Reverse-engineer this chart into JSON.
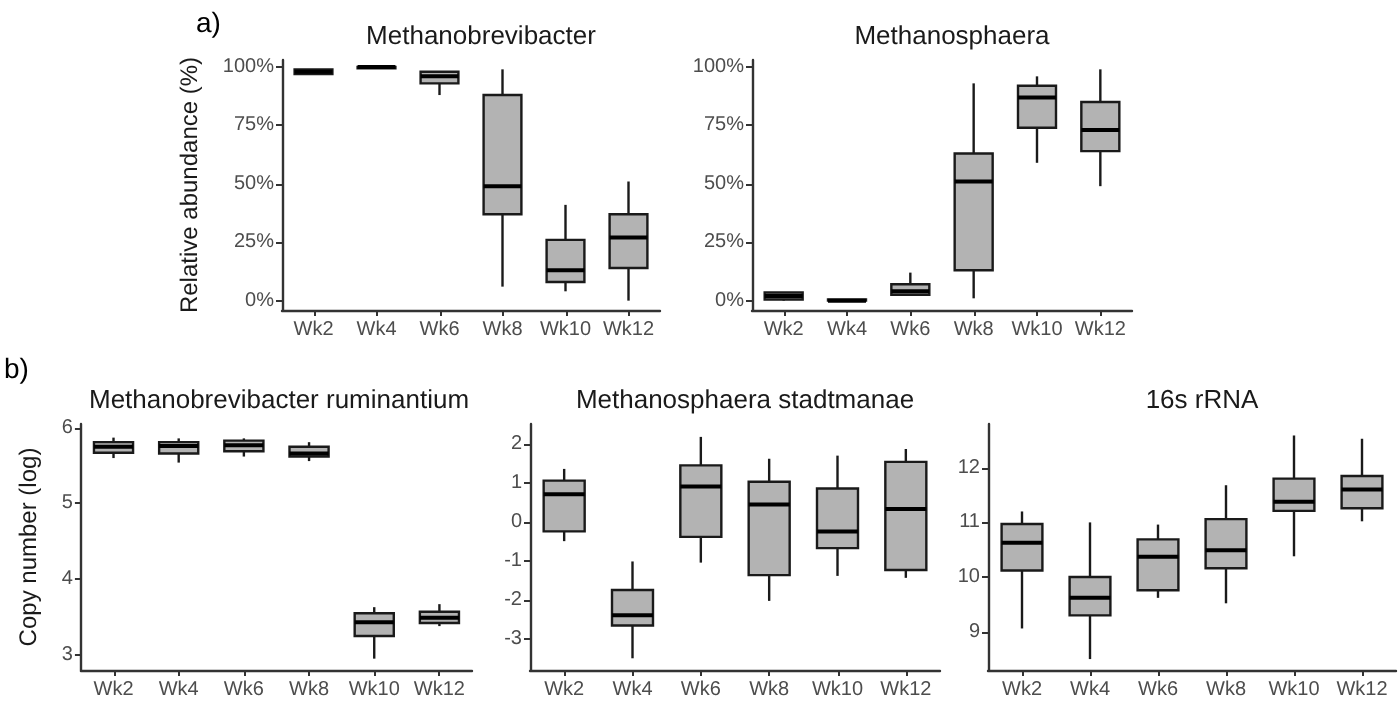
{
  "chart_data": [
    {
      "type": "box",
      "title": "Methanobrevibacter",
      "ylabel": "Relative abundance (%)",
      "annotations": [
        "a)"
      ],
      "color": "#b3b3b3",
      "grid": false,
      "categories": [
        "Wk2",
        "Wk4",
        "Wk6",
        "Wk8",
        "Wk10",
        "Wk12"
      ],
      "ylim": [
        -4,
        103
      ],
      "yticks": [
        {
          "value": 0,
          "label": "0%"
        },
        {
          "value": 25,
          "label": "25%"
        },
        {
          "value": 50,
          "label": "50%"
        },
        {
          "value": 75,
          "label": "75%"
        },
        {
          "value": 100,
          "label": "100%"
        }
      ],
      "boxes": [
        {
          "low": 97,
          "q1": 97,
          "median": 98,
          "q3": 99,
          "high": 99
        },
        {
          "low": 99.5,
          "q1": 99.5,
          "median": 100,
          "q3": 100,
          "high": 100
        },
        {
          "low": 88,
          "q1": 93,
          "median": 96,
          "q3": 98,
          "high": 98
        },
        {
          "low": 6,
          "q1": 37,
          "median": 49,
          "q3": 88,
          "high": 99
        },
        {
          "low": 4,
          "q1": 8,
          "median": 13,
          "q3": 26,
          "high": 41
        },
        {
          "low": 0,
          "q1": 14,
          "median": 27,
          "q3": 37,
          "high": 51
        }
      ]
    },
    {
      "type": "box",
      "title": "Methanosphaera",
      "color": "#b3b3b3",
      "grid": false,
      "categories": [
        "Wk2",
        "Wk4",
        "Wk6",
        "Wk8",
        "Wk10",
        "Wk12"
      ],
      "ylim": [
        -4,
        103
      ],
      "yticks": [
        {
          "value": 0,
          "label": "0%"
        },
        {
          "value": 25,
          "label": "25%"
        },
        {
          "value": 50,
          "label": "50%"
        },
        {
          "value": 75,
          "label": "75%"
        },
        {
          "value": 100,
          "label": "100%"
        }
      ],
      "boxes": [
        {
          "low": 0,
          "q1": 0.5,
          "median": 2,
          "q3": 3.5,
          "high": 3.5
        },
        {
          "low": 0,
          "q1": 0,
          "median": 0,
          "q3": 0.5,
          "high": 0.5
        },
        {
          "low": 2,
          "q1": 2.5,
          "median": 4,
          "q3": 7,
          "high": 12
        },
        {
          "low": 1,
          "q1": 13,
          "median": 51,
          "q3": 63,
          "high": 93
        },
        {
          "low": 59,
          "q1": 74,
          "median": 87,
          "q3": 92,
          "high": 96
        },
        {
          "low": 49,
          "q1": 64,
          "median": 73,
          "q3": 85,
          "high": 99
        }
      ]
    },
    {
      "type": "box",
      "title": "Methanobrevibacter ruminantium",
      "ylabel": "Copy number (log)",
      "annotations": [
        "b)"
      ],
      "color": "#b3b3b3",
      "grid": false,
      "categories": [
        "Wk2",
        "Wk4",
        "Wk6",
        "Wk8",
        "Wk10",
        "Wk12"
      ],
      "ylim": [
        2.8,
        6.05
      ],
      "yticks": [
        3,
        4,
        5,
        6
      ],
      "boxes": [
        {
          "low": 5.6,
          "q1": 5.67,
          "median": 5.75,
          "q3": 5.81,
          "high": 5.87
        },
        {
          "low": 5.54,
          "q1": 5.66,
          "median": 5.76,
          "q3": 5.81,
          "high": 5.86
        },
        {
          "low": 5.62,
          "q1": 5.69,
          "median": 5.77,
          "q3": 5.83,
          "high": 5.86
        },
        {
          "low": 5.56,
          "q1": 5.62,
          "median": 5.66,
          "q3": 5.75,
          "high": 5.81
        },
        {
          "low": 2.95,
          "q1": 3.25,
          "median": 3.43,
          "q3": 3.55,
          "high": 3.63
        },
        {
          "low": 3.38,
          "q1": 3.42,
          "median": 3.49,
          "q3": 3.57,
          "high": 3.67
        }
      ]
    },
    {
      "type": "box",
      "title": "Methanosphaera stadtmanae",
      "color": "#b3b3b3",
      "grid": false,
      "categories": [
        "Wk2",
        "Wk4",
        "Wk6",
        "Wk8",
        "Wk10",
        "Wk12"
      ],
      "ylim": [
        -3.8,
        2.5
      ],
      "yticks": [
        -3,
        -2,
        -1,
        0,
        1,
        2
      ],
      "boxes": [
        {
          "low": -0.5,
          "q1": -0.25,
          "median": 0.7,
          "q3": 1.05,
          "high": 1.35
        },
        {
          "low": -3.5,
          "q1": -2.66,
          "median": -2.4,
          "q3": -1.75,
          "high": -1.02
        },
        {
          "low": -1.05,
          "q1": -0.39,
          "median": 0.9,
          "q3": 1.44,
          "high": 2.17
        },
        {
          "low": -2.03,
          "q1": -1.37,
          "median": 0.44,
          "q3": 1.02,
          "high": 1.61
        },
        {
          "low": -1.39,
          "q1": -0.68,
          "median": -0.25,
          "q3": 0.85,
          "high": 1.69
        },
        {
          "low": -1.44,
          "q1": -1.24,
          "median": 0.32,
          "q3": 1.53,
          "high": 1.86
        }
      ]
    },
    {
      "type": "box",
      "title": "16s rRNA",
      "color": "#b3b3b3",
      "grid": false,
      "categories": [
        "Wk2",
        "Wk4",
        "Wk6",
        "Wk8",
        "Wk10",
        "Wk12"
      ],
      "ylim": [
        8.3,
        12.8
      ],
      "yticks": [
        9,
        10,
        11,
        12
      ],
      "boxes": [
        {
          "low": 9.06,
          "q1": 10.12,
          "median": 10.63,
          "q3": 10.97,
          "high": 11.2
        },
        {
          "low": 8.5,
          "q1": 9.3,
          "median": 9.62,
          "q3": 10.0,
          "high": 11.0
        },
        {
          "low": 9.62,
          "q1": 9.76,
          "median": 10.37,
          "q3": 10.69,
          "high": 10.96
        },
        {
          "low": 9.52,
          "q1": 10.16,
          "median": 10.49,
          "q3": 11.06,
          "high": 11.68
        },
        {
          "low": 10.38,
          "q1": 11.21,
          "median": 11.38,
          "q3": 11.8,
          "high": 12.59
        },
        {
          "low": 11.02,
          "q1": 11.26,
          "median": 11.6,
          "q3": 11.85,
          "high": 12.53
        }
      ]
    }
  ]
}
